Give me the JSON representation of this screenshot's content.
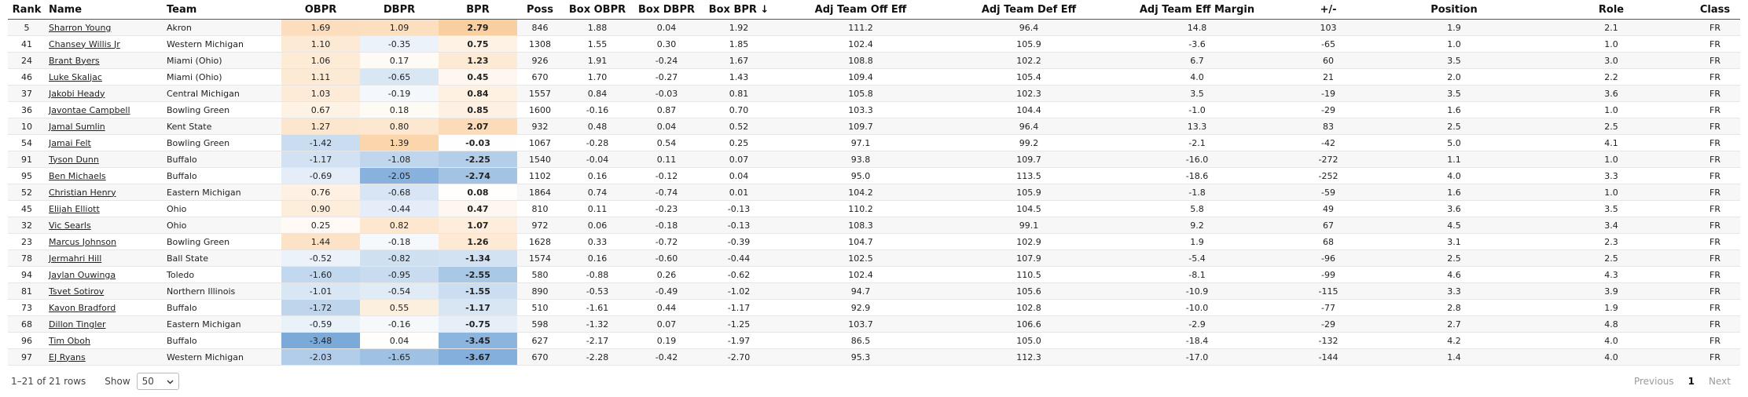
{
  "columns": [
    {
      "key": "rank",
      "label": "Rank",
      "align": "c"
    },
    {
      "key": "name",
      "label": "Name",
      "align": "l"
    },
    {
      "key": "team",
      "label": "Team",
      "align": "l"
    },
    {
      "key": "obpr",
      "label": "OBPR",
      "align": "c"
    },
    {
      "key": "dbpr",
      "label": "DBPR",
      "align": "c"
    },
    {
      "key": "bpr",
      "label": "BPR",
      "align": "c"
    },
    {
      "key": "poss",
      "label": "Poss",
      "align": "c"
    },
    {
      "key": "box_obpr",
      "label": "Box OBPR",
      "align": "c"
    },
    {
      "key": "box_dbpr",
      "label": "Box DBPR",
      "align": "c"
    },
    {
      "key": "box_bpr",
      "label": "Box BPR ↓",
      "align": "c"
    },
    {
      "key": "adj_off",
      "label": "Adj Team Off Eff",
      "align": "c"
    },
    {
      "key": "adj_def",
      "label": "Adj Team Def Eff",
      "align": "c"
    },
    {
      "key": "adj_margin",
      "label": "Adj Team Eff Margin",
      "align": "c"
    },
    {
      "key": "pm",
      "label": "+/-",
      "align": "c"
    },
    {
      "key": "position",
      "label": "Position",
      "align": "c"
    },
    {
      "key": "role",
      "label": "Role",
      "align": "c"
    },
    {
      "key": "class",
      "label": "Class",
      "align": "c"
    }
  ],
  "rows": [
    {
      "rank": "5",
      "name": "Sharron Young",
      "team": "Akron",
      "obpr": "1.69",
      "dbpr": "1.09",
      "bpr": "2.79",
      "poss": "846",
      "box_obpr": "1.88",
      "box_dbpr": "0.04",
      "box_bpr": "1.92",
      "adj_off": "111.2",
      "adj_def": "96.4",
      "adj_margin": "14.8",
      "pm": "103",
      "position": "1.9",
      "role": "2.1",
      "class": "FR"
    },
    {
      "rank": "41",
      "name": "Chansey Willis Jr",
      "team": "Western Michigan",
      "obpr": "1.10",
      "dbpr": "-0.35",
      "bpr": "0.75",
      "poss": "1308",
      "box_obpr": "1.55",
      "box_dbpr": "0.30",
      "box_bpr": "1.85",
      "adj_off": "102.4",
      "adj_def": "105.9",
      "adj_margin": "-3.6",
      "pm": "-65",
      "position": "1.0",
      "role": "1.0",
      "class": "FR"
    },
    {
      "rank": "24",
      "name": "Brant Byers",
      "team": "Miami (Ohio)",
      "obpr": "1.06",
      "dbpr": "0.17",
      "bpr": "1.23",
      "poss": "926",
      "box_obpr": "1.91",
      "box_dbpr": "-0.24",
      "box_bpr": "1.67",
      "adj_off": "108.8",
      "adj_def": "102.2",
      "adj_margin": "6.7",
      "pm": "60",
      "position": "3.5",
      "role": "3.0",
      "class": "FR"
    },
    {
      "rank": "46",
      "name": "Luke Skaljac",
      "team": "Miami (Ohio)",
      "obpr": "1.11",
      "dbpr": "-0.65",
      "bpr": "0.45",
      "poss": "670",
      "box_obpr": "1.70",
      "box_dbpr": "-0.27",
      "box_bpr": "1.43",
      "adj_off": "109.4",
      "adj_def": "105.4",
      "adj_margin": "4.0",
      "pm": "21",
      "position": "2.0",
      "role": "2.2",
      "class": "FR"
    },
    {
      "rank": "37",
      "name": "Jakobi Heady",
      "team": "Central Michigan",
      "obpr": "1.03",
      "dbpr": "-0.19",
      "bpr": "0.84",
      "poss": "1557",
      "box_obpr": "0.84",
      "box_dbpr": "-0.03",
      "box_bpr": "0.81",
      "adj_off": "105.8",
      "adj_def": "102.3",
      "adj_margin": "3.5",
      "pm": "-19",
      "position": "3.5",
      "role": "3.6",
      "class": "FR"
    },
    {
      "rank": "36",
      "name": "Javontae Campbell",
      "team": "Bowling Green",
      "obpr": "0.67",
      "dbpr": "0.18",
      "bpr": "0.85",
      "poss": "1600",
      "box_obpr": "-0.16",
      "box_dbpr": "0.87",
      "box_bpr": "0.70",
      "adj_off": "103.3",
      "adj_def": "104.4",
      "adj_margin": "-1.0",
      "pm": "-29",
      "position": "1.6",
      "role": "1.0",
      "class": "FR"
    },
    {
      "rank": "10",
      "name": "Jamal Sumlin",
      "team": "Kent State",
      "obpr": "1.27",
      "dbpr": "0.80",
      "bpr": "2.07",
      "poss": "932",
      "box_obpr": "0.48",
      "box_dbpr": "0.04",
      "box_bpr": "0.52",
      "adj_off": "109.7",
      "adj_def": "96.4",
      "adj_margin": "13.3",
      "pm": "83",
      "position": "2.5",
      "role": "2.5",
      "class": "FR"
    },
    {
      "rank": "54",
      "name": "Jamai Felt",
      "team": "Bowling Green",
      "obpr": "-1.42",
      "dbpr": "1.39",
      "bpr": "-0.03",
      "poss": "1067",
      "box_obpr": "-0.28",
      "box_dbpr": "0.54",
      "box_bpr": "0.25",
      "adj_off": "97.1",
      "adj_def": "99.2",
      "adj_margin": "-2.1",
      "pm": "-42",
      "position": "5.0",
      "role": "4.1",
      "class": "FR"
    },
    {
      "rank": "91",
      "name": "Tyson Dunn",
      "team": "Buffalo",
      "obpr": "-1.17",
      "dbpr": "-1.08",
      "bpr": "-2.25",
      "poss": "1540",
      "box_obpr": "-0.04",
      "box_dbpr": "0.11",
      "box_bpr": "0.07",
      "adj_off": "93.8",
      "adj_def": "109.7",
      "adj_margin": "-16.0",
      "pm": "-272",
      "position": "1.1",
      "role": "1.0",
      "class": "FR"
    },
    {
      "rank": "95",
      "name": "Ben Michaels",
      "team": "Buffalo",
      "obpr": "-0.69",
      "dbpr": "-2.05",
      "bpr": "-2.74",
      "poss": "1102",
      "box_obpr": "0.16",
      "box_dbpr": "-0.12",
      "box_bpr": "0.04",
      "adj_off": "95.0",
      "adj_def": "113.5",
      "adj_margin": "-18.6",
      "pm": "-252",
      "position": "4.0",
      "role": "3.3",
      "class": "FR"
    },
    {
      "rank": "52",
      "name": "Christian Henry",
      "team": "Eastern Michigan",
      "obpr": "0.76",
      "dbpr": "-0.68",
      "bpr": "0.08",
      "poss": "1864",
      "box_obpr": "0.74",
      "box_dbpr": "-0.74",
      "box_bpr": "0.01",
      "adj_off": "104.2",
      "adj_def": "105.9",
      "adj_margin": "-1.8",
      "pm": "-59",
      "position": "1.6",
      "role": "1.0",
      "class": "FR"
    },
    {
      "rank": "45",
      "name": "Elijah Elliott",
      "team": "Ohio",
      "obpr": "0.90",
      "dbpr": "-0.44",
      "bpr": "0.47",
      "poss": "810",
      "box_obpr": "0.11",
      "box_dbpr": "-0.23",
      "box_bpr": "-0.13",
      "adj_off": "110.2",
      "adj_def": "104.5",
      "adj_margin": "5.8",
      "pm": "49",
      "position": "3.6",
      "role": "3.5",
      "class": "FR"
    },
    {
      "rank": "32",
      "name": "Vic Searls",
      "team": "Ohio",
      "obpr": "0.25",
      "dbpr": "0.82",
      "bpr": "1.07",
      "poss": "972",
      "box_obpr": "0.06",
      "box_dbpr": "-0.18",
      "box_bpr": "-0.13",
      "adj_off": "108.3",
      "adj_def": "99.1",
      "adj_margin": "9.2",
      "pm": "67",
      "position": "4.5",
      "role": "3.4",
      "class": "FR"
    },
    {
      "rank": "23",
      "name": "Marcus Johnson",
      "team": "Bowling Green",
      "obpr": "1.44",
      "dbpr": "-0.18",
      "bpr": "1.26",
      "poss": "1628",
      "box_obpr": "0.33",
      "box_dbpr": "-0.72",
      "box_bpr": "-0.39",
      "adj_off": "104.7",
      "adj_def": "102.9",
      "adj_margin": "1.9",
      "pm": "68",
      "position": "3.1",
      "role": "2.3",
      "class": "FR"
    },
    {
      "rank": "78",
      "name": "Jermahri Hill",
      "team": "Ball State",
      "obpr": "-0.52",
      "dbpr": "-0.82",
      "bpr": "-1.34",
      "poss": "1574",
      "box_obpr": "0.16",
      "box_dbpr": "-0.60",
      "box_bpr": "-0.44",
      "adj_off": "102.5",
      "adj_def": "107.9",
      "adj_margin": "-5.4",
      "pm": "-96",
      "position": "2.5",
      "role": "2.5",
      "class": "FR"
    },
    {
      "rank": "94",
      "name": "Jaylan Ouwinga",
      "team": "Toledo",
      "obpr": "-1.60",
      "dbpr": "-0.95",
      "bpr": "-2.55",
      "poss": "580",
      "box_obpr": "-0.88",
      "box_dbpr": "0.26",
      "box_bpr": "-0.62",
      "adj_off": "102.4",
      "adj_def": "110.5",
      "adj_margin": "-8.1",
      "pm": "-99",
      "position": "4.6",
      "role": "4.3",
      "class": "FR"
    },
    {
      "rank": "81",
      "name": "Tsvet Sotirov",
      "team": "Northern Illinois",
      "obpr": "-1.01",
      "dbpr": "-0.54",
      "bpr": "-1.55",
      "poss": "890",
      "box_obpr": "-0.53",
      "box_dbpr": "-0.49",
      "box_bpr": "-1.02",
      "adj_off": "94.7",
      "adj_def": "105.6",
      "adj_margin": "-10.9",
      "pm": "-115",
      "position": "3.3",
      "role": "3.9",
      "class": "FR"
    },
    {
      "rank": "73",
      "name": "Kavon Bradford",
      "team": "Buffalo",
      "obpr": "-1.72",
      "dbpr": "0.55",
      "bpr": "-1.17",
      "poss": "510",
      "box_obpr": "-1.61",
      "box_dbpr": "0.44",
      "box_bpr": "-1.17",
      "adj_off": "92.9",
      "adj_def": "102.8",
      "adj_margin": "-10.0",
      "pm": "-77",
      "position": "2.8",
      "role": "1.9",
      "class": "FR"
    },
    {
      "rank": "68",
      "name": "Dillon Tingler",
      "team": "Eastern Michigan",
      "obpr": "-0.59",
      "dbpr": "-0.16",
      "bpr": "-0.75",
      "poss": "598",
      "box_obpr": "-1.32",
      "box_dbpr": "0.07",
      "box_bpr": "-1.25",
      "adj_off": "103.7",
      "adj_def": "106.6",
      "adj_margin": "-2.9",
      "pm": "-29",
      "position": "2.7",
      "role": "4.8",
      "class": "FR"
    },
    {
      "rank": "96",
      "name": "Tim Oboh",
      "team": "Buffalo",
      "obpr": "-3.48",
      "dbpr": "0.04",
      "bpr": "-3.45",
      "poss": "627",
      "box_obpr": "-2.17",
      "box_dbpr": "0.19",
      "box_bpr": "-1.97",
      "adj_off": "86.5",
      "adj_def": "105.0",
      "adj_margin": "-18.4",
      "pm": "-132",
      "position": "4.2",
      "role": "4.0",
      "class": "FR"
    },
    {
      "rank": "97",
      "name": "EJ Ryans",
      "team": "Western Michigan",
      "obpr": "-2.03",
      "dbpr": "-1.65",
      "bpr": "-3.67",
      "poss": "670",
      "box_obpr": "-2.28",
      "box_dbpr": "-0.42",
      "box_bpr": "-2.70",
      "adj_off": "95.3",
      "adj_def": "112.3",
      "adj_margin": "-17.0",
      "pm": "-144",
      "position": "1.4",
      "role": "4.0",
      "class": "FR"
    }
  ],
  "footer": {
    "row_count": "1–21 of 21 rows",
    "show_label": "Show",
    "page_size": "50",
    "previous": "Previous",
    "current_page": "1",
    "next": "Next"
  },
  "colors": {
    "positive": "#f6a44a",
    "negative": "#4d8ccc"
  }
}
